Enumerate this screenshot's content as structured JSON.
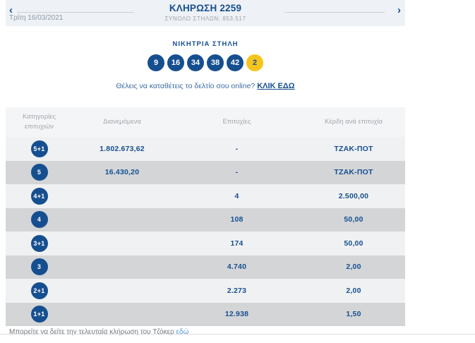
{
  "header": {
    "title": "ΚΛΗΡΩΣΗ 2259",
    "subtitle": "ΣΥΝΟΛΟ ΣΤΗΛΩΝ: 853.517",
    "date": "Τρίτη 16/03/2021",
    "prev_arrow": "‹",
    "next_arrow": "›"
  },
  "draw": {
    "winning_column_label": "ΝΙΚΗΤΡΙΑ ΣΤΗΛΗ",
    "numbers": [
      "9",
      "16",
      "34",
      "38",
      "42"
    ],
    "joker_number": "2"
  },
  "online_cta": {
    "text": "Θέλεις να καταθέτεις το δελτίο σου online?",
    "link_label": "ΚΛΙΚ ΕΔΩ"
  },
  "table": {
    "columns": [
      "Κατηγορίες επιτυχιών",
      "Διανεμόμενα",
      "Επιτυχίες",
      "Κέρδη ανά επιτυχία"
    ],
    "rows": [
      {
        "category": "5+1",
        "distributed": "1.802.673,62",
        "winners": "-",
        "prize": "ΤΖΑΚ-ΠΟΤ"
      },
      {
        "category": "5",
        "distributed": "16.430,20",
        "winners": "-",
        "prize": "ΤΖΑΚ-ΠΟΤ"
      },
      {
        "category": "4+1",
        "distributed": "",
        "winners": "4",
        "prize": "2.500,00"
      },
      {
        "category": "4",
        "distributed": "",
        "winners": "108",
        "prize": "50,00"
      },
      {
        "category": "3+1",
        "distributed": "",
        "winners": "174",
        "prize": "50,00"
      },
      {
        "category": "3",
        "distributed": "",
        "winners": "4.740",
        "prize": "2,00"
      },
      {
        "category": "2+1",
        "distributed": "",
        "winners": "2.273",
        "prize": "2,00"
      },
      {
        "category": "1+1",
        "distributed": "",
        "winners": "12.938",
        "prize": "1,50"
      }
    ]
  },
  "footer": {
    "text": "Μπορείτε να δείτε την τελευταία κλήρωση του Τζόκερ",
    "link_label": "εδώ"
  },
  "colors": {
    "primary_blue": "#164f90",
    "joker_yellow": "#f6c51d",
    "row_light": "#f0f1f2",
    "row_dark": "#d3d5d7",
    "topbar_bg": "#eef1f5"
  }
}
